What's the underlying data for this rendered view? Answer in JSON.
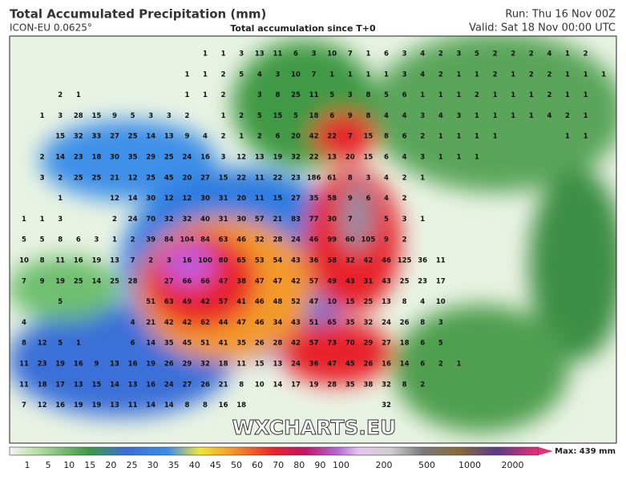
{
  "header": {
    "title": "Total Accumulated Precipitation (mm)",
    "model": "ICON-EU 0.0625°",
    "subtitle": "Total accumulation since T+0",
    "run": "Run: Thu 16 Nov 00Z",
    "valid": "Valid: Sat 18 Nov 00:00 UTC"
  },
  "map": {
    "watermark": "WXCHARTS.EU",
    "grid": [
      [
        null,
        null,
        null,
        null,
        null,
        null,
        null,
        null,
        null,
        null,
        1,
        1,
        3,
        13,
        11,
        6,
        3,
        10,
        7,
        1,
        6,
        3,
        4,
        2,
        3,
        5,
        2,
        2,
        2,
        4,
        1,
        2,
        null
      ],
      [
        null,
        null,
        null,
        null,
        null,
        null,
        null,
        null,
        null,
        1,
        1,
        2,
        5,
        4,
        3,
        10,
        7,
        1,
        1,
        1,
        1,
        3,
        4,
        2,
        1,
        1,
        2,
        1,
        2,
        2,
        1,
        1,
        1
      ],
      [
        null,
        null,
        2,
        1,
        null,
        null,
        null,
        null,
        null,
        1,
        1,
        2,
        null,
        3,
        8,
        25,
        11,
        5,
        3,
        8,
        5,
        6,
        1,
        1,
        1,
        2,
        1,
        1,
        1,
        2,
        1,
        1,
        null
      ],
      [
        null,
        1,
        3,
        28,
        15,
        9,
        5,
        3,
        3,
        2,
        null,
        1,
        2,
        5,
        15,
        5,
        18,
        6,
        9,
        8,
        4,
        4,
        3,
        4,
        3,
        1,
        1,
        1,
        1,
        4,
        2,
        1,
        null
      ],
      [
        null,
        null,
        15,
        32,
        33,
        27,
        25,
        14,
        13,
        9,
        4,
        2,
        1,
        2,
        6,
        20,
        42,
        22,
        7,
        15,
        8,
        6,
        2,
        1,
        1,
        1,
        1,
        null,
        null,
        null,
        1,
        1,
        null
      ],
      [
        null,
        2,
        14,
        23,
        18,
        30,
        35,
        29,
        25,
        24,
        16,
        3,
        12,
        13,
        19,
        32,
        22,
        13,
        20,
        15,
        6,
        4,
        3,
        1,
        1,
        1
      ],
      [
        null,
        3,
        2,
        25,
        25,
        21,
        12,
        25,
        45,
        20,
        27,
        15,
        22,
        11,
        22,
        23,
        186,
        61,
        8,
        3,
        4,
        2,
        1
      ],
      [
        null,
        null,
        1,
        null,
        null,
        12,
        14,
        30,
        12,
        12,
        30,
        31,
        20,
        11,
        15,
        27,
        35,
        58,
        9,
        6,
        4,
        2
      ],
      [
        1,
        1,
        3,
        null,
        null,
        2,
        24,
        70,
        32,
        32,
        40,
        31,
        30,
        57,
        21,
        83,
        77,
        30,
        7,
        null,
        5,
        3,
        1
      ],
      [
        5,
        5,
        8,
        6,
        3,
        1,
        2,
        39,
        84,
        104,
        84,
        63,
        46,
        32,
        28,
        24,
        46,
        99,
        60,
        105,
        9,
        2
      ],
      [
        10,
        8,
        11,
        16,
        19,
        13,
        7,
        2,
        3,
        16,
        100,
        80,
        65,
        53,
        54,
        43,
        36,
        58,
        32,
        42,
        46,
        125,
        36,
        11
      ],
      [
        7,
        9,
        19,
        25,
        14,
        25,
        28,
        null,
        27,
        66,
        66,
        47,
        38,
        47,
        47,
        42,
        57,
        49,
        43,
        31,
        43,
        25,
        23,
        17
      ],
      [
        null,
        null,
        5,
        null,
        null,
        null,
        null,
        51,
        63,
        49,
        42,
        57,
        41,
        46,
        48,
        52,
        47,
        10,
        15,
        25,
        13,
        8,
        4,
        10
      ],
      [
        4,
        null,
        null,
        null,
        null,
        null,
        4,
        21,
        42,
        42,
        62,
        44,
        47,
        46,
        34,
        43,
        51,
        65,
        35,
        32,
        24,
        26,
        8,
        3
      ],
      [
        8,
        12,
        5,
        1,
        null,
        null,
        6,
        14,
        35,
        45,
        51,
        41,
        35,
        26,
        28,
        42,
        57,
        73,
        70,
        29,
        27,
        18,
        6,
        5
      ],
      [
        11,
        23,
        19,
        16,
        9,
        13,
        16,
        19,
        26,
        29,
        32,
        18,
        11,
        15,
        13,
        24,
        36,
        47,
        45,
        26,
        16,
        14,
        6,
        2,
        1
      ],
      [
        11,
        18,
        17,
        13,
        15,
        14,
        13,
        16,
        24,
        27,
        26,
        21,
        8,
        10,
        14,
        17,
        19,
        28,
        35,
        38,
        32,
        8,
        2
      ],
      [
        7,
        12,
        16,
        19,
        19,
        13,
        11,
        14,
        14,
        8,
        8,
        16,
        18,
        null,
        null,
        null,
        null,
        null,
        null,
        null,
        32
      ]
    ]
  },
  "colorbar": {
    "labels": [
      1,
      5,
      10,
      15,
      20,
      25,
      30,
      35,
      40,
      45,
      50,
      60,
      70,
      80,
      90,
      100,
      200,
      500,
      1000,
      2000
    ],
    "max": "Max: 439 mm"
  }
}
